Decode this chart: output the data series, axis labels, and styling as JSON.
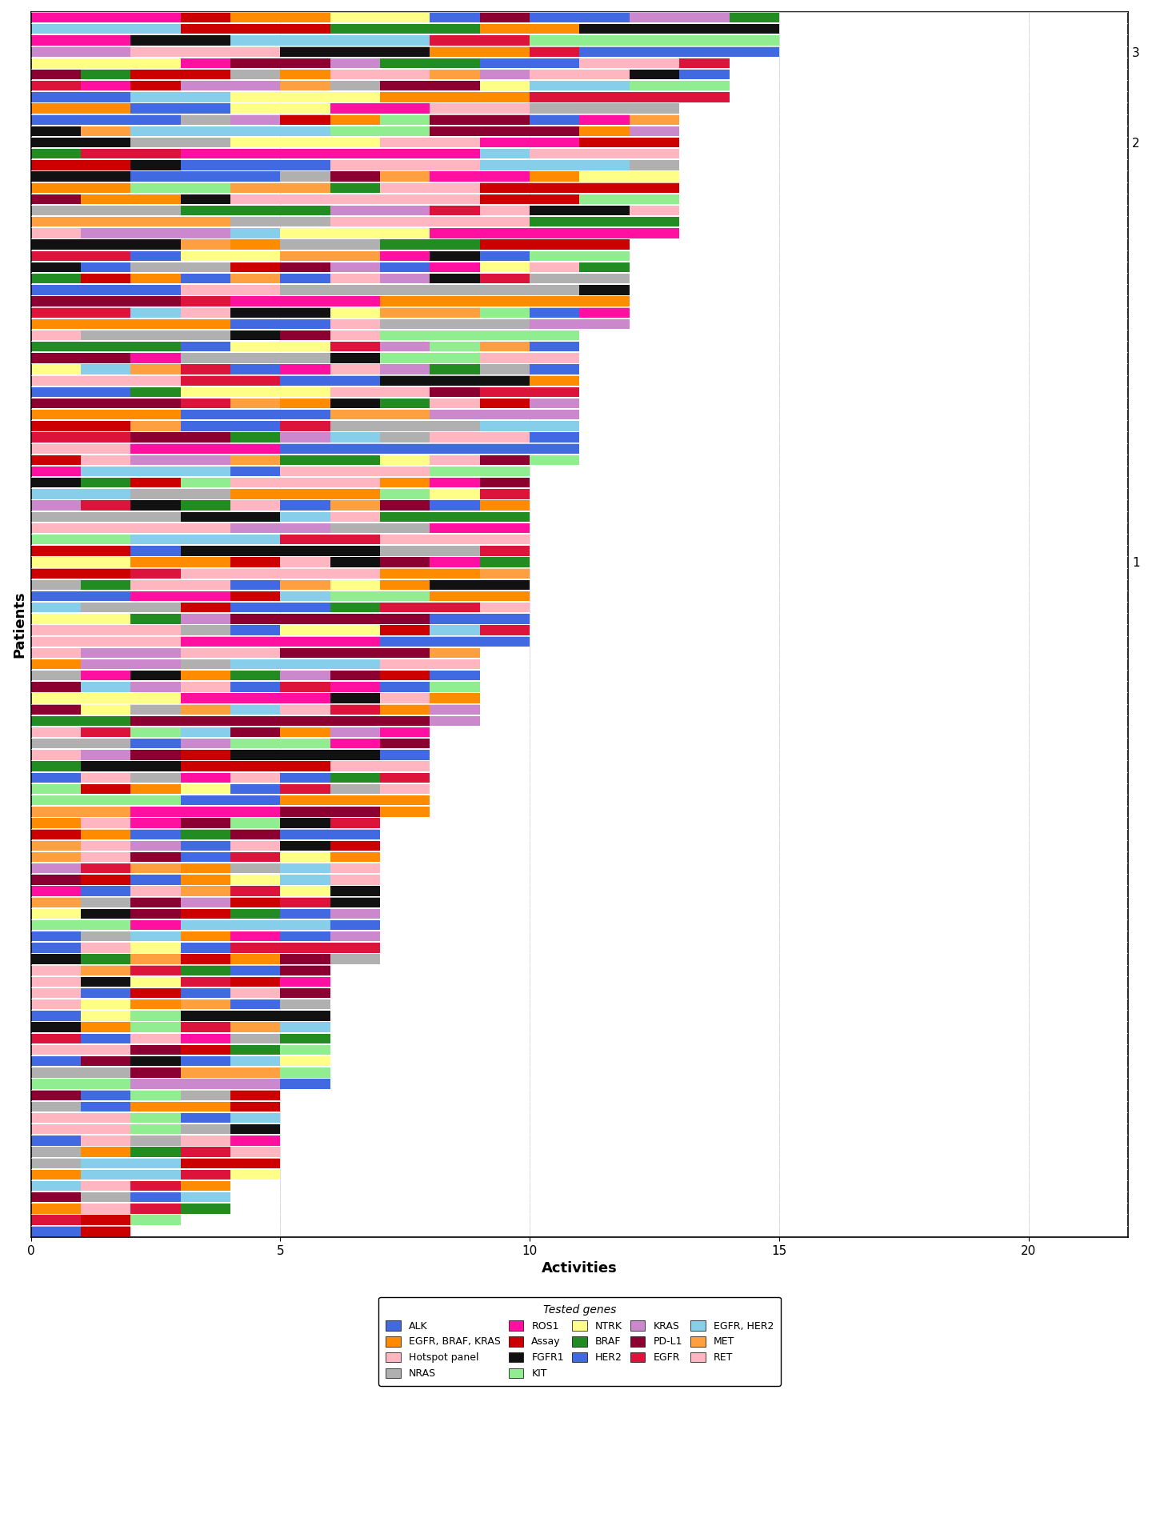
{
  "xlabel": "Activities",
  "ylabel": "Patients",
  "xlim": [
    0,
    22
  ],
  "xticks": [
    0,
    5,
    10,
    15,
    20
  ],
  "background_color": "#ffffff",
  "plot_bg_color": "#ffffff",
  "legend_title": "Tested genes",
  "bar_height": 0.88,
  "figsize": [
    14.4,
    19.17
  ],
  "dpi": 100,
  "right_labels": [
    "3",
    "2",
    "1"
  ],
  "gene_colors": {
    "ALK": "#4169E1",
    "Assay": "#CC0000",
    "BRAF": "#228B22",
    "EGFR": "#DC143C",
    "EGFR, BRAF, KRAS": "#FF8C00",
    "FGFR1": "#111111",
    "HER2": "#4169E1",
    "EGFR, HER2": "#87CEEB",
    "Hotspot panel": "#FFB6C1",
    "KIT": "#90EE90",
    "KRAS": "#CC88CC",
    "MET": "#FFA040",
    "NRAS": "#B0B0B0",
    "NTRK": "#FFFF88",
    "PD-L1": "#8B0030",
    "RET": "#FFB6C1",
    "ROS1": "#FF10A0"
  },
  "legend_order": [
    [
      "ALK",
      "EGFR, BRAF, KRAS",
      "Hotspot panel",
      "NRAS",
      "ROS1"
    ],
    [
      "Assay",
      "FGFR1",
      "KIT",
      "NTRK",
      ""
    ],
    [
      "BRAF",
      "HER2",
      "KRAS",
      "PD-L1",
      ""
    ],
    [
      "EGFR",
      "EGFR, HER2",
      "MET",
      "RET",
      ""
    ]
  ]
}
